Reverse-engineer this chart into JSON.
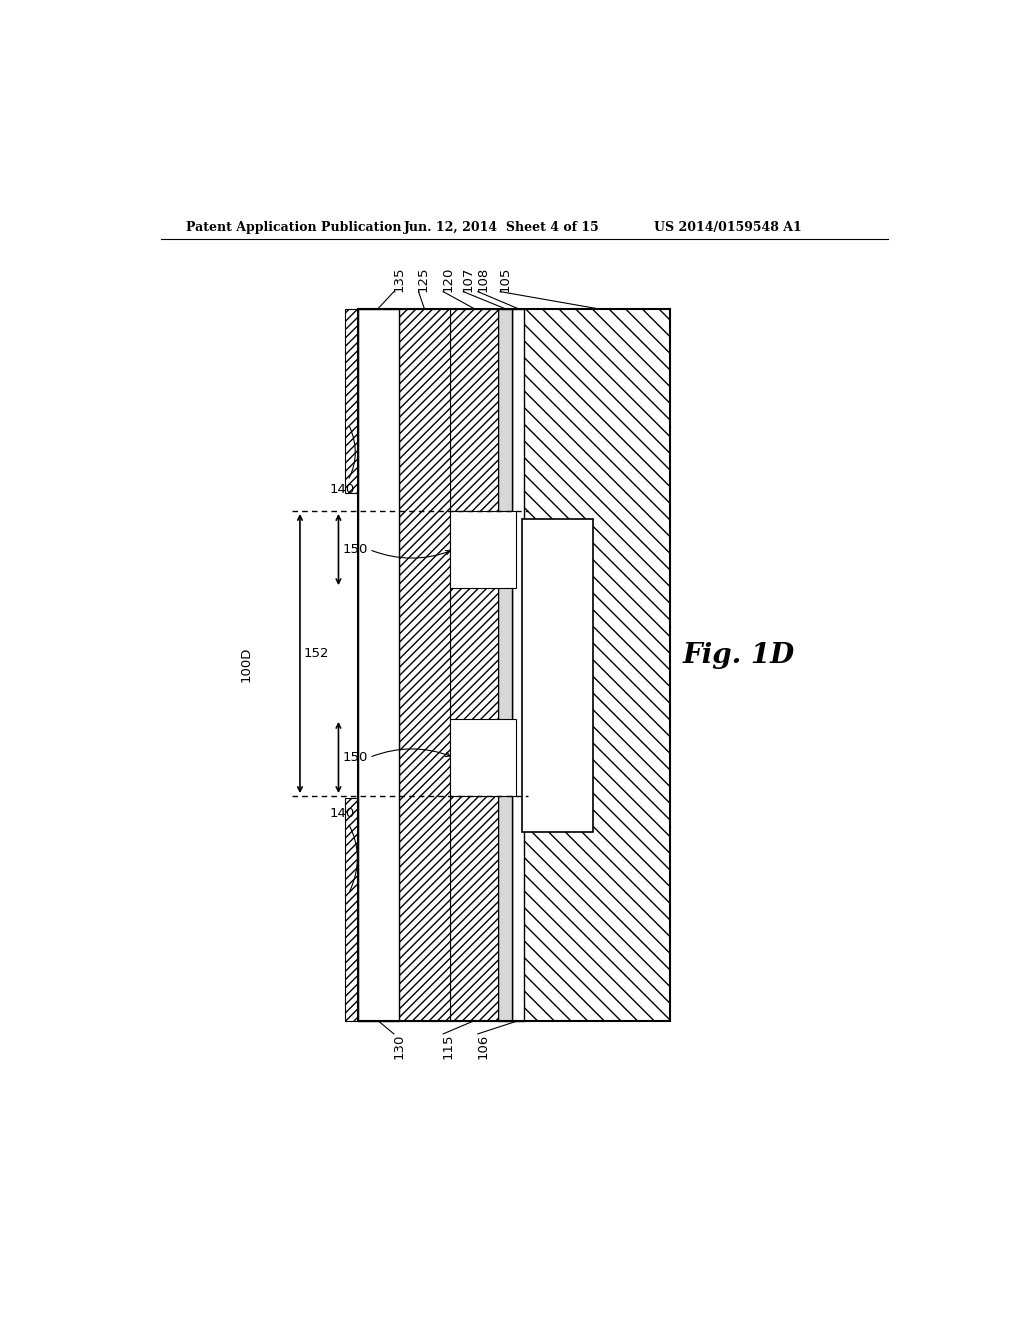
{
  "header_left": "Patent Application Publication",
  "header_mid": "Jun. 12, 2014  Sheet 4 of 15",
  "header_right": "US 2014/0159548 A1",
  "fig_label": "Fig. 1D",
  "device_label": "100D",
  "bg_color": "#ffffff",
  "label_fs": 9.5,
  "fig_fs": 20
}
